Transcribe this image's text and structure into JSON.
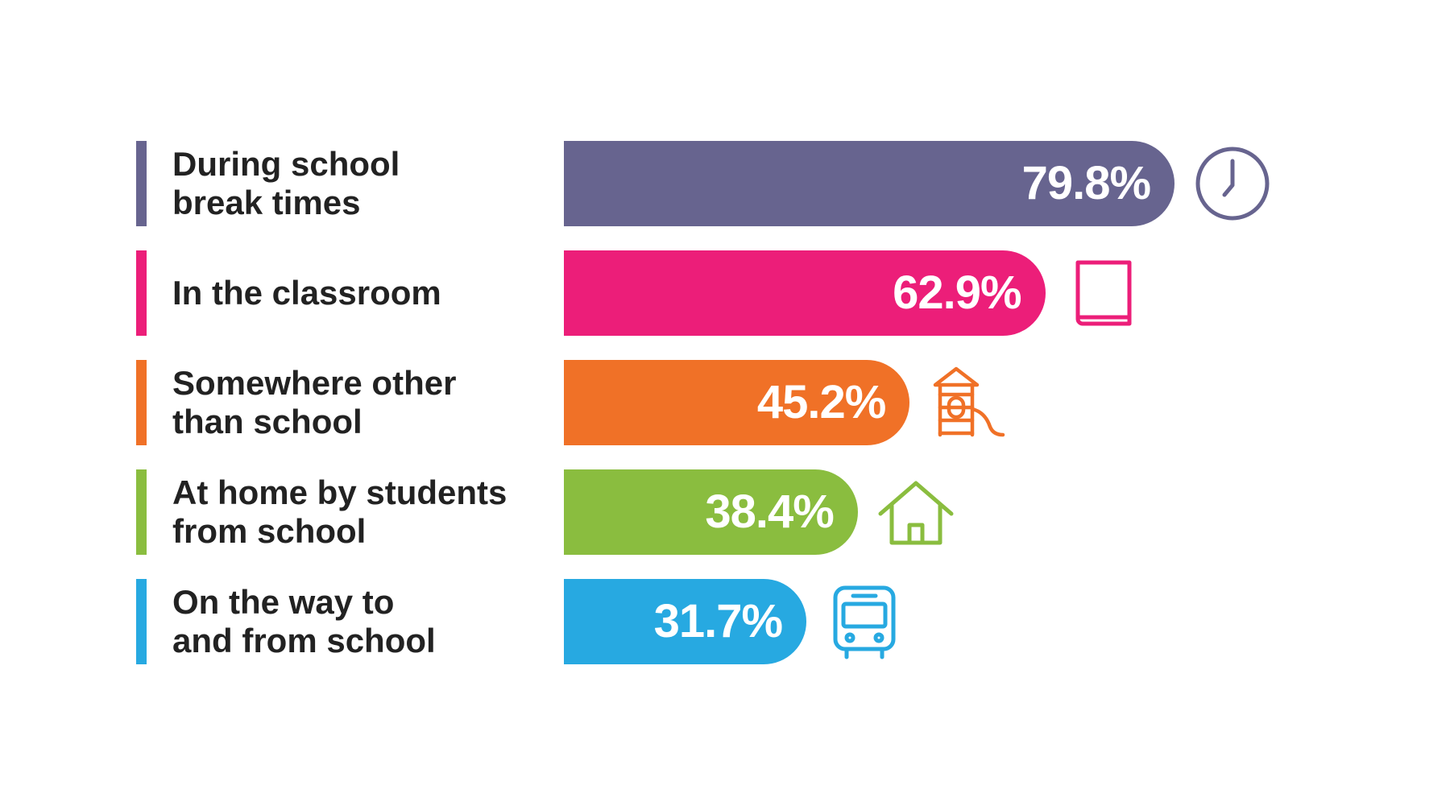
{
  "chart_data": {
    "type": "bar",
    "orientation": "horizontal",
    "categories": [
      "During school\nbreak times",
      "In the classroom",
      "Somewhere other\nthan school",
      "At home by students\nfrom school",
      "On the way to\nand from school"
    ],
    "values": [
      79.8,
      62.9,
      45.2,
      38.4,
      31.7
    ],
    "value_labels": [
      "79.8%",
      "62.9%",
      "45.2%",
      "38.4%",
      "31.7%"
    ],
    "colors": [
      "#67648f",
      "#ec1e79",
      "#f07127",
      "#8abd3f",
      "#27a9e1"
    ],
    "icons": [
      "clock-icon",
      "book-icon",
      "playground-icon",
      "house-icon",
      "bus-icon"
    ],
    "xlim": [
      0,
      100
    ],
    "grid": false,
    "legend": "none"
  }
}
